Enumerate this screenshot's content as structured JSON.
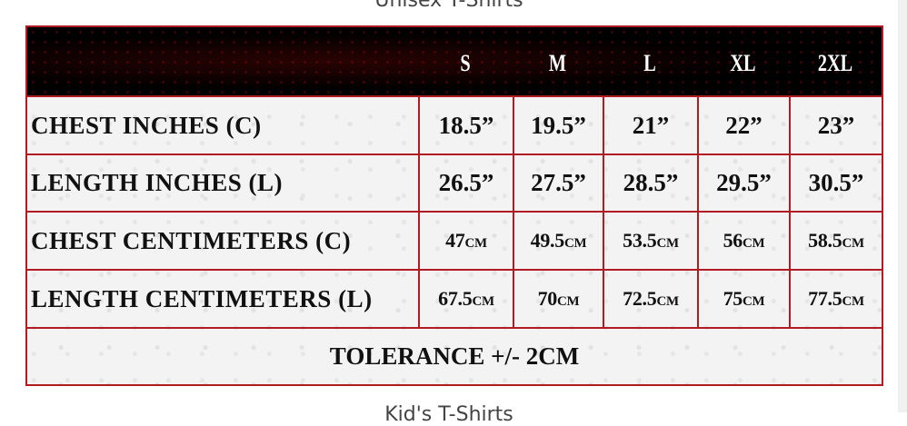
{
  "page_titles": {
    "top": "Unisex T-Shirts",
    "bottom": "Kid's T-Shirts"
  },
  "sizes": [
    "S",
    "M",
    "L",
    "XL",
    "2XL"
  ],
  "rows": [
    {
      "label": "CHEST INCHES (C)",
      "values": [
        "18.5”",
        "19.5”",
        "21”",
        "22”",
        "23”"
      ]
    },
    {
      "label": "LENGTH INCHES (L)",
      "values": [
        "26.5”",
        "27.5”",
        "28.5”",
        "29.5”",
        "30.5”"
      ]
    },
    {
      "label": "CHEST CENTIMETERS (C)",
      "values": [
        "47cm",
        "49.5cm",
        "53.5cm",
        "56cm",
        "58.5cm"
      ]
    },
    {
      "label": "LENGTH CENTIMETERS (L)",
      "values": [
        "67.5cm",
        "70cm",
        "72.5cm",
        "75cm",
        "77.5cm"
      ]
    }
  ],
  "tolerance": "TOLERANCE +/- 2CM",
  "colors": {
    "border": "#b01c22",
    "header_bg": "#000000"
  }
}
